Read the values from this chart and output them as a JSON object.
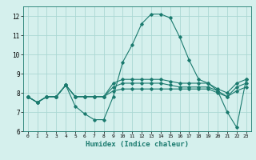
{
  "x": [
    0,
    1,
    2,
    3,
    4,
    5,
    6,
    7,
    8,
    9,
    10,
    11,
    12,
    13,
    14,
    15,
    16,
    17,
    18,
    19,
    20,
    21,
    22,
    23
  ],
  "line1": [
    7.8,
    7.5,
    7.8,
    7.8,
    8.4,
    7.3,
    6.9,
    6.6,
    6.6,
    7.8,
    9.6,
    10.5,
    11.6,
    12.1,
    12.1,
    11.9,
    10.9,
    9.7,
    8.7,
    8.5,
    8.1,
    7.0,
    6.2,
    8.7
  ],
  "line2": [
    7.8,
    7.5,
    7.8,
    7.8,
    8.4,
    7.8,
    7.8,
    7.8,
    7.8,
    8.5,
    8.7,
    8.7,
    8.7,
    8.7,
    8.7,
    8.6,
    8.5,
    8.5,
    8.5,
    8.5,
    8.2,
    8.0,
    8.5,
    8.7
  ],
  "line3": [
    7.8,
    7.5,
    7.8,
    7.8,
    8.4,
    7.8,
    7.8,
    7.8,
    7.8,
    8.3,
    8.5,
    8.5,
    8.5,
    8.5,
    8.5,
    8.4,
    8.3,
    8.3,
    8.3,
    8.3,
    8.1,
    7.8,
    8.3,
    8.5
  ],
  "line4": [
    7.8,
    7.5,
    7.8,
    7.8,
    8.4,
    7.8,
    7.8,
    7.8,
    7.8,
    8.1,
    8.2,
    8.2,
    8.2,
    8.2,
    8.2,
    8.2,
    8.2,
    8.2,
    8.2,
    8.2,
    8.0,
    7.8,
    8.1,
    8.3
  ],
  "line_color": "#1a7a6e",
  "bg_color": "#d5f0ed",
  "grid_color": "#aad8d3",
  "xlabel": "Humidex (Indice chaleur)",
  "ylim": [
    6,
    12.5
  ],
  "xlim": [
    -0.5,
    23.5
  ],
  "yticks": [
    6,
    7,
    8,
    9,
    10,
    11,
    12
  ],
  "xticks": [
    0,
    1,
    2,
    3,
    4,
    5,
    6,
    7,
    8,
    9,
    10,
    11,
    12,
    13,
    14,
    15,
    16,
    17,
    18,
    19,
    20,
    21,
    22,
    23
  ]
}
